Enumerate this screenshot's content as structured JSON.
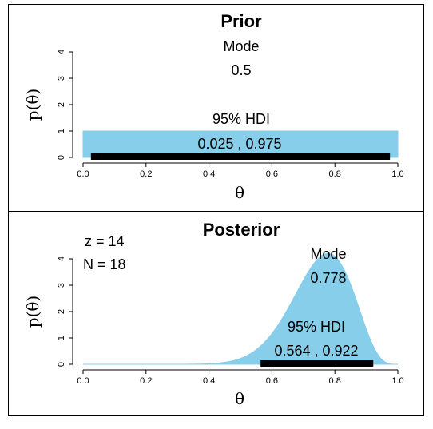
{
  "chart_data": [
    {
      "type": "area",
      "title": "Prior",
      "xlabel": "θ",
      "ylabel": "p(θ)",
      "xlim": [
        0,
        1
      ],
      "ylim": [
        0,
        4
      ],
      "x_ticks": [
        "0.0",
        "0.2",
        "0.4",
        "0.6",
        "0.8",
        "1.0"
      ],
      "y_ticks": [
        "0",
        "1",
        "2",
        "3",
        "4"
      ],
      "density": {
        "x": [
          0.0,
          1.0
        ],
        "y": [
          1.0,
          1.0
        ]
      },
      "fill_color": "#87CEEB",
      "mode_label": "Mode",
      "mode_value": "0.5",
      "hdi_label": "95% HDI",
      "hdi_text": "0.025 , 0.975",
      "hdi": [
        0.025,
        0.975
      ],
      "hdi_color": "#000000"
    },
    {
      "type": "area",
      "title": "Posterior",
      "xlabel": "θ",
      "ylabel": "p(θ)",
      "xlim": [
        0,
        1
      ],
      "ylim": [
        0,
        4
      ],
      "x_ticks": [
        "0.0",
        "0.2",
        "0.4",
        "0.6",
        "0.8",
        "1.0"
      ],
      "y_ticks": [
        "0",
        "1",
        "2",
        "3",
        "4"
      ],
      "density": {
        "dist": "beta",
        "a": 15,
        "b": 5
      },
      "fill_color": "#87CEEB",
      "mode_label": "Mode",
      "mode_value": "0.778",
      "hdi_label": "95% HDI",
      "hdi_text": "0.564 , 0.922",
      "hdi": [
        0.564,
        0.922
      ],
      "hdi_color": "#000000",
      "z_text": "z = 14",
      "n_text": "N = 18"
    }
  ]
}
